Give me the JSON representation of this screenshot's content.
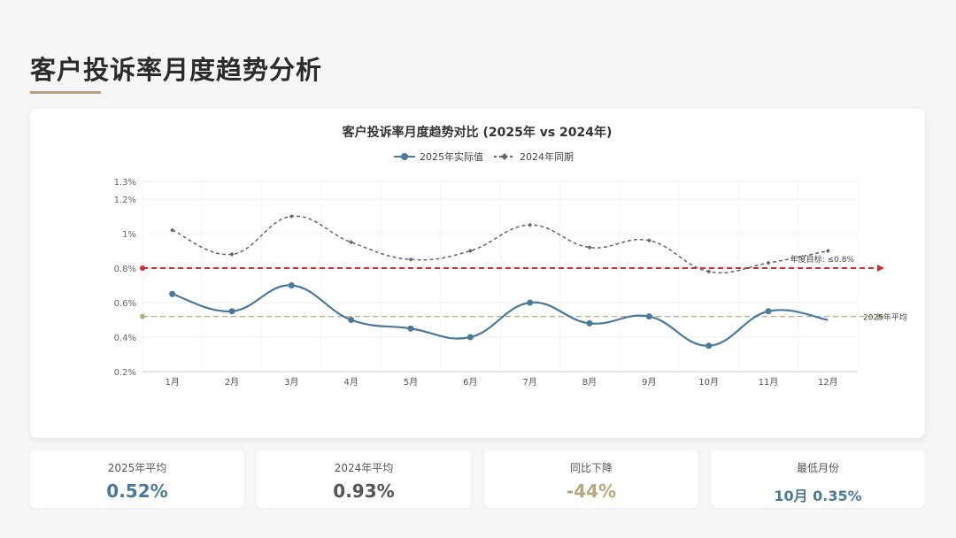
{
  "page": {
    "title": "客户投诉率月度趋势分析",
    "accent_color": "#b99e7c"
  },
  "chart_data": {
    "type": "line",
    "title": "客户投诉率月度趋势对比 (2025年 vs 2024年)",
    "categories": [
      "1月",
      "2月",
      "3月",
      "4月",
      "5月",
      "6月",
      "7月",
      "8月",
      "9月",
      "10月",
      "11月",
      "12月"
    ],
    "series": [
      {
        "name": "2025年实际值",
        "color": "#4a7a9b",
        "style": "solid",
        "values": [
          0.65,
          0.55,
          0.7,
          0.5,
          0.45,
          0.4,
          0.6,
          0.48,
          0.52,
          0.35,
          0.55,
          0.5
        ]
      },
      {
        "name": "2024年同期",
        "color": "#666666",
        "style": "dashed",
        "values": [
          1.02,
          0.88,
          1.1,
          0.95,
          0.85,
          0.9,
          1.05,
          0.92,
          0.96,
          0.78,
          0.83,
          0.9
        ]
      }
    ],
    "yticks": [
      "0.2%",
      "0.4%",
      "0.6%",
      "0.8%",
      "1%",
      "1.2%",
      "1.3%"
    ],
    "ylim": [
      0.2,
      1.3
    ],
    "reference_lines": [
      {
        "label": "年度目标: ≤0.8%",
        "value": 0.8,
        "color": "#d92b2b"
      },
      {
        "label": "2025年平均",
        "value": 0.52,
        "color": "#b5ad84"
      }
    ],
    "legend_position": "top-center",
    "grid": true
  },
  "stats": [
    {
      "label": "2025年平均",
      "value": "0.52%",
      "color": "#4a7a9b"
    },
    {
      "label": "2024年平均",
      "value": "0.93%",
      "color": "#555555"
    },
    {
      "label": "同比下降",
      "value": "-44%",
      "color": "#b5a87e"
    },
    {
      "label": "最低月份",
      "value": "10月 0.35%",
      "color": "#4a7a9b"
    }
  ]
}
